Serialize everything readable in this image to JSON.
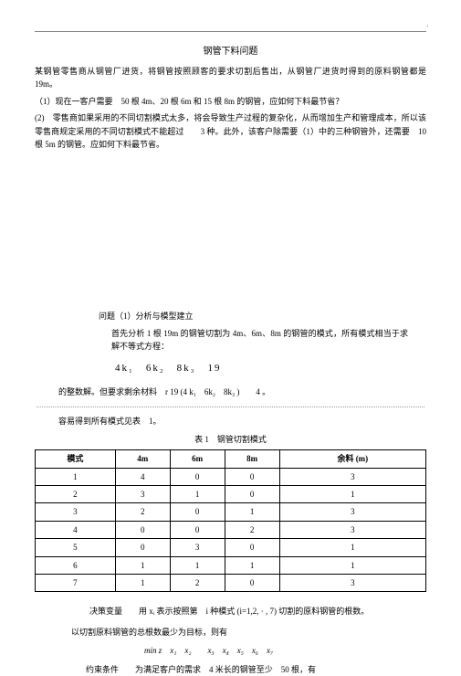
{
  "title": "钢管下料问题",
  "intro": "某钢管零售商从钢管厂进货，将钢管按照顾客的要求切割后售出，从钢管厂进货时得到的原料钢管都是 19m。",
  "q1": "（1）现在一客户需要　50 根 4m、20 根 6m 和 15 根 8m 的钢管，应如何下料最节省？",
  "q2": "(2)　零售商如果采用的不同切割模式太多，将会导致生产过程的复杂化，从而增加生产和管理成本，所以该零售商规定采用的不同切割模式不能超过　　3 种。此外，该客户除需要（1）中的三种钢管外，还需要　10 根 5m 的钢管。应如何下料最节省。",
  "sec1": "问题（1）分析与模型建立",
  "sec1_body": "首先分析 1 根 19m 的钢管切割为 4m、6m、8m 的钢管的模式，所有模式相当于求解不等式方程：",
  "formula1": "4k₁　6k₂　8k₃　19",
  "line_int": "的整数解。但要求剩余材料　r  19  (4 k₁　6k₂　8k₃ )　　4 。",
  "line_easy": "容易得到所有模式见表　1。",
  "table_title": "表 1　钢管切割模式",
  "table": {
    "headers": [
      "模式",
      "4m",
      "6m",
      "8m",
      "余料 (m)"
    ],
    "rows": [
      [
        "1",
        "4",
        "0",
        "0",
        "3"
      ],
      [
        "2",
        "3",
        "1",
        "0",
        "1"
      ],
      [
        "3",
        "2",
        "0",
        "1",
        "3"
      ],
      [
        "4",
        "0",
        "0",
        "2",
        "3"
      ],
      [
        "5",
        "0",
        "3",
        "0",
        "1"
      ],
      [
        "6",
        "1",
        "1",
        "1",
        "1"
      ],
      [
        "7",
        "1",
        "2",
        "0",
        "3"
      ]
    ]
  },
  "decvar": "决策变量　　用 xᵢ 表示按照第　i 种模式 (i=1,2, · , 7) 切割的原料钢管的根数。",
  "obj": "以切割原料钢管的总根数最少为目标，则有",
  "minz": "min z　x₁　x₂　　x₃　x₄　x₅　x₆　x₇",
  "constraint": "约束条件　　为满足客户的需求　4 米长的钢管至少　50 根，有"
}
